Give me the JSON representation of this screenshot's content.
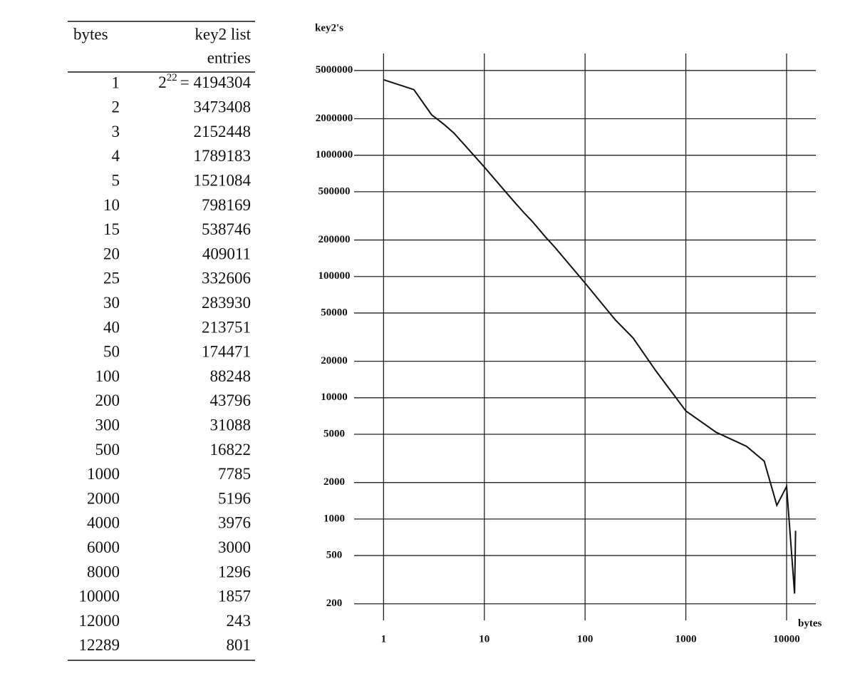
{
  "table": {
    "header": [
      "bytes",
      "key2 list",
      "entries"
    ],
    "rows": [
      [
        "1",
        {
          "text": "2",
          "sup": "22",
          "after": "= 4194304"
        }
      ],
      [
        "2",
        "3473408"
      ],
      [
        "3",
        "2152448"
      ],
      [
        "4",
        "1789183"
      ],
      [
        "5",
        "1521084"
      ],
      [
        "10",
        "798169"
      ],
      [
        "15",
        "538746"
      ],
      [
        "20",
        "409011"
      ],
      [
        "25",
        "332606"
      ],
      [
        "30",
        "283930"
      ],
      [
        "40",
        "213751"
      ],
      [
        "50",
        "174471"
      ],
      [
        "100",
        "88248"
      ],
      [
        "200",
        "43796"
      ],
      [
        "300",
        "31088"
      ],
      [
        "500",
        "16822"
      ],
      [
        "1000",
        "7785"
      ],
      [
        "2000",
        "5196"
      ],
      [
        "4000",
        "3976"
      ],
      [
        "6000",
        "3000"
      ],
      [
        "8000",
        "1296"
      ],
      [
        "10000",
        "1857"
      ],
      [
        "12000",
        "243"
      ],
      [
        "12289",
        "801"
      ]
    ]
  },
  "chart_data": {
    "type": "line",
    "y_label": "key2's",
    "x_label": "bytes",
    "x": [
      1,
      2,
      3,
      4,
      5,
      10,
      15,
      20,
      25,
      30,
      40,
      50,
      100,
      200,
      300,
      500,
      1000,
      2000,
      4000,
      6000,
      8000,
      10000,
      12000,
      12289
    ],
    "series": [
      {
        "name": "key2's",
        "color": "#111111",
        "values": [
          4194304,
          3473408,
          2152448,
          1789183,
          1521084,
          798169,
          538746,
          409011,
          332606,
          283930,
          213751,
          174471,
          88248,
          43796,
          31088,
          16822,
          7785,
          5196,
          3976,
          3000,
          1296,
          1857,
          243,
          801
        ]
      }
    ],
    "xscale": "log",
    "yscale": "log",
    "xlim": [
      0.51,
      19500
    ],
    "ylim": [
      146,
      6900000
    ],
    "xticks": [
      1,
      10,
      100,
      1000,
      10000
    ],
    "yticks": [
      5000000,
      2000000,
      1000000,
      500000,
      200000,
      100000,
      50000,
      20000,
      10000,
      5000,
      2000,
      1000,
      500,
      200
    ],
    "grid": true
  }
}
